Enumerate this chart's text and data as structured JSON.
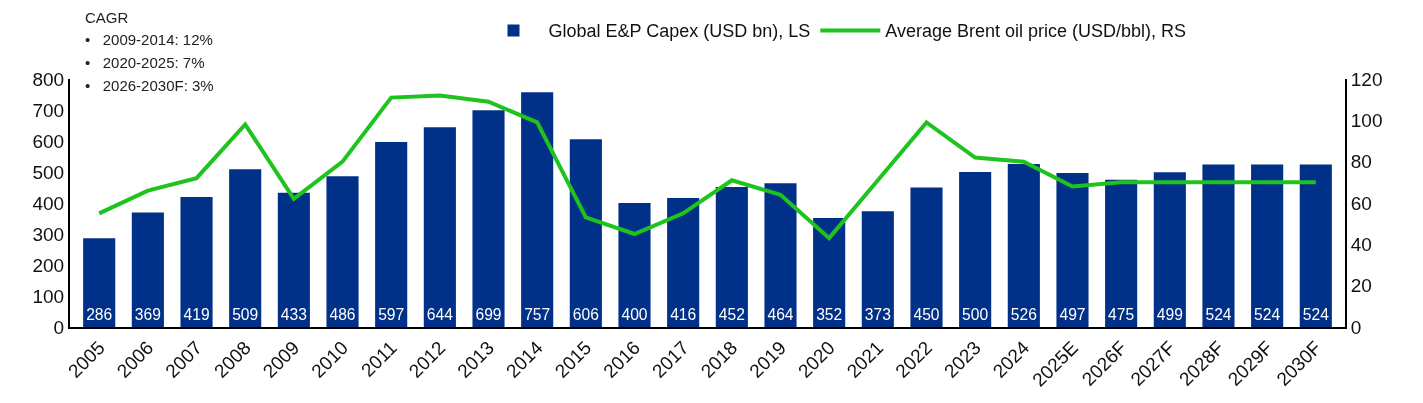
{
  "chart_data": {
    "type": "bar",
    "categories": [
      "2005",
      "2006",
      "2007",
      "2008",
      "2009",
      "2010",
      "2011",
      "2012",
      "2013",
      "2014",
      "2015",
      "2016",
      "2017",
      "2018",
      "2019",
      "2020",
      "2021",
      "2022",
      "2023",
      "2024",
      "2025E",
      "2026F",
      "2027F",
      "2028F",
      "2029F",
      "2030F"
    ],
    "series": [
      {
        "name": "Global E&P Capex (USD bn), LS",
        "color": "#003087",
        "values": [
          286,
          369,
          419,
          509,
          433,
          486,
          597,
          644,
          699,
          757,
          606,
          400,
          416,
          452,
          464,
          352,
          373,
          450,
          500,
          526,
          497,
          475,
          499,
          524,
          524,
          524
        ],
        "value_labels": [
          "286",
          "369",
          "419",
          "509",
          "433",
          "486",
          "597",
          "644",
          "699",
          "757",
          "606",
          "400",
          "416",
          "452",
          "464",
          "352",
          "373",
          "450",
          "500",
          "526",
          "497",
          "475",
          "499",
          "524",
          "524",
          "524"
        ]
      },
      {
        "name": "Average Brent oil price (USD/bbl), RS",
        "type": "line",
        "axis": "y2",
        "color": "#1ec31e",
        "values": [
          55,
          66,
          72,
          98,
          62,
          80,
          111,
          112,
          109,
          99,
          53,
          45,
          55,
          71,
          64,
          43,
          71,
          99,
          82,
          80,
          68,
          70,
          70,
          70,
          70,
          70
        ]
      }
    ],
    "ylim": [
      0,
      800
    ],
    "yticks": [
      0,
      100,
      200,
      300,
      400,
      500,
      600,
      700,
      800
    ],
    "y2lim": [
      0,
      120
    ],
    "y2ticks": [
      0,
      20,
      40,
      60,
      80,
      100,
      120
    ],
    "grid": false,
    "legend": "top",
    "marker": "none",
    "line_style": "solid",
    "annotations": [
      "CAGR",
      "•   2009-2014: 12%",
      "•   2020-2025: 7%",
      "•   2026-2030F: 3%"
    ]
  }
}
